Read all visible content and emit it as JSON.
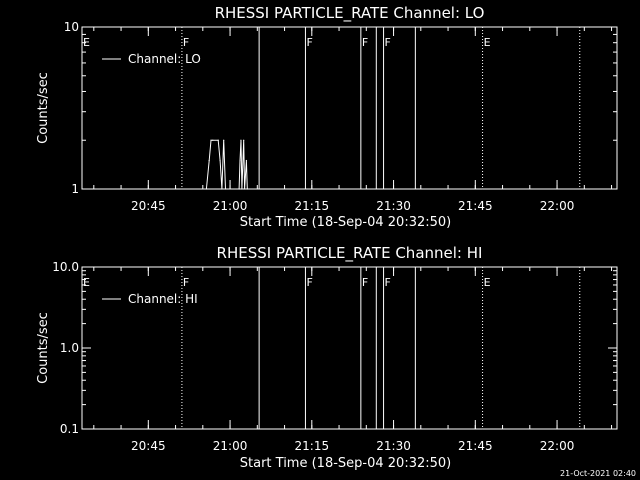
{
  "footer": {
    "timestamp": "21-Oct-2021 02:40"
  },
  "chart_data": [
    {
      "type": "line",
      "title": "RHESSI PARTICLE_RATE Channel: LO",
      "xlabel": "Start Time (18-Sep-04 20:32:50)",
      "ylabel": "Counts/sec",
      "y_scale": "log",
      "ylim": [
        1,
        10
      ],
      "y_ticks": [
        {
          "v": 1,
          "label": "1"
        },
        {
          "v": 10,
          "label": "10"
        }
      ],
      "xlim": [
        "20:32:50",
        "22:11:00"
      ],
      "x_ticks": [
        "20:45",
        "21:00",
        "21:15",
        "21:30",
        "21:45",
        "22:00"
      ],
      "legend": {
        "label": "Channel: LO",
        "placement": "top-left"
      },
      "series": [
        {
          "name": "Channel: LO",
          "x": [
            "20:55:40",
            "20:56:10",
            "20:56:30",
            "20:56:50",
            "20:57:50",
            "20:58:10",
            "20:58:30",
            "20:58:50",
            "20:59:10",
            "21:01:40",
            "21:01:50",
            "21:02:00",
            "21:02:10",
            "21:02:30",
            "21:02:40",
            "21:03:00",
            "21:03:10"
          ],
          "values": [
            1,
            1.5,
            2,
            2,
            2,
            1.5,
            1,
            2,
            1,
            1,
            1.5,
            2,
            1,
            2,
            1,
            1.5,
            1
          ]
        }
      ],
      "solid_lines": [
        "21:05:20",
        "21:13:50",
        "21:24:00",
        "21:26:50",
        "21:28:10",
        "21:34:00"
      ],
      "dotted_lines": [
        "20:51:10",
        "21:46:20",
        "22:04:10"
      ],
      "markers": [
        {
          "t": "20:32:50",
          "label": "E"
        },
        {
          "t": "20:51:10",
          "label": "F"
        },
        {
          "t": "21:13:50",
          "label": "F"
        },
        {
          "t": "21:24:00",
          "label": "F"
        },
        {
          "t": "21:28:10",
          "label": "F"
        },
        {
          "t": "21:46:20",
          "label": "E"
        }
      ]
    },
    {
      "type": "line",
      "title": "RHESSI PARTICLE_RATE Channel: HI",
      "xlabel": "Start Time (18-Sep-04 20:32:50)",
      "ylabel": "Counts/sec",
      "y_scale": "log",
      "ylim": [
        0.1,
        10
      ],
      "y_ticks": [
        {
          "v": 0.1,
          "label": "0.1"
        },
        {
          "v": 1,
          "label": "1.0"
        },
        {
          "v": 10,
          "label": "10.0"
        }
      ],
      "xlim": [
        "20:32:50",
        "22:11:00"
      ],
      "x_ticks": [
        "20:45",
        "21:00",
        "21:15",
        "21:30",
        "21:45",
        "22:00"
      ],
      "legend": {
        "label": "Channel: HI",
        "placement": "top-left"
      },
      "series": [],
      "solid_lines": [
        "21:05:20",
        "21:13:50",
        "21:24:00",
        "21:26:50",
        "21:28:10",
        "21:34:00"
      ],
      "dotted_lines": [
        "20:51:10",
        "21:46:20",
        "22:04:10"
      ],
      "markers": [
        {
          "t": "20:32:50",
          "label": "E"
        },
        {
          "t": "20:51:10",
          "label": "F"
        },
        {
          "t": "21:13:50",
          "label": "F"
        },
        {
          "t": "21:24:00",
          "label": "F"
        },
        {
          "t": "21:28:10",
          "label": "F"
        },
        {
          "t": "21:46:20",
          "label": "E"
        }
      ]
    }
  ]
}
